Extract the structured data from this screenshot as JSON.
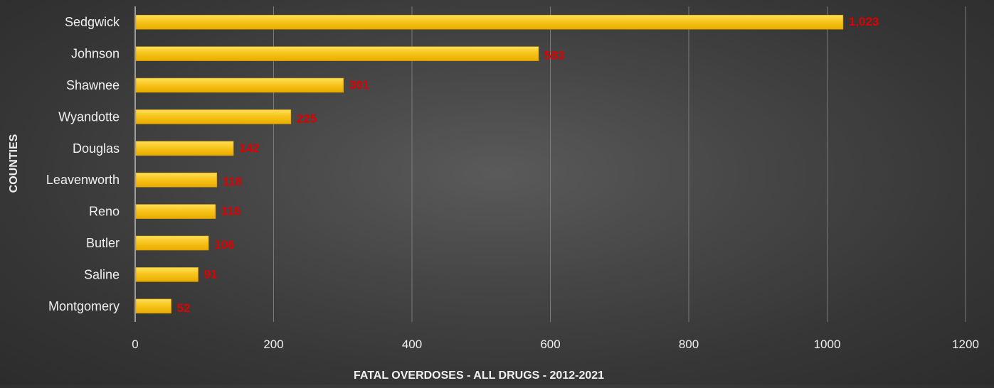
{
  "chart_data": {
    "type": "bar",
    "orientation": "horizontal",
    "categories": [
      "Sedgwick",
      "Johnson",
      "Shawnee",
      "Wyandotte",
      "Douglas",
      "Leavenworth",
      "Reno",
      "Butler",
      "Saline",
      "Montgomery"
    ],
    "values": [
      1023,
      583,
      301,
      225,
      142,
      118,
      116,
      106,
      91,
      52
    ],
    "data_labels": [
      "1,023",
      "583",
      "301",
      "225",
      "142",
      "118",
      "116",
      "106",
      "91",
      "52"
    ],
    "xlabel": "FATAL OVERDOSES - ALL DRUGS - 2012-2021",
    "ylabel": "COUNTIES",
    "xlim": [
      0,
      1200
    ],
    "xticks": [
      0,
      200,
      400,
      600,
      800,
      1000,
      1200
    ],
    "xtick_labels": [
      "0",
      "200",
      "400",
      "600",
      "800",
      "1000",
      "1200"
    ],
    "grid": "vertical",
    "legend": "none",
    "colors": {
      "bar": "#f7c31a",
      "bar_highlight": "#ffd84a",
      "data_label": "#e00000",
      "text": "#f0f0f0",
      "gridline": "#7a7a7a"
    }
  }
}
